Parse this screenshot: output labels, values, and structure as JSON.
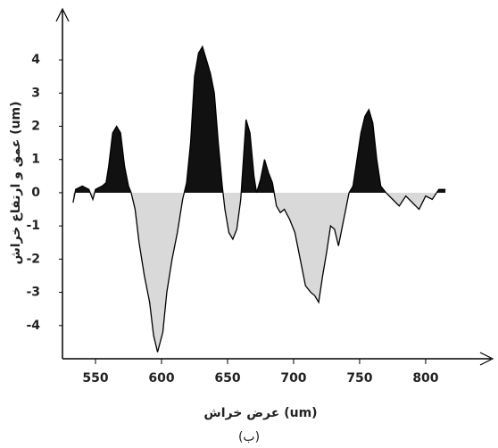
{
  "chart_data": {
    "type": "line",
    "y_label": "عمق و ارتفاع خراش (um)",
    "x_label": "عرض خراش (um)",
    "caption": "(ب)",
    "xlim": [
      525,
      846
    ],
    "ylim": [
      -5,
      5.4
    ],
    "xticks": [
      550,
      600,
      650,
      700,
      750,
      800
    ],
    "yticks": [
      -4,
      -3,
      -2,
      -1,
      0,
      1,
      2,
      3,
      4
    ],
    "above_color": "#111111",
    "below_color": "#d9d9d9",
    "line_color": "#000000",
    "x": [
      533,
      535,
      540,
      545,
      548,
      550,
      555,
      558,
      560,
      563,
      566,
      569,
      572,
      575,
      577,
      580,
      583,
      587,
      591,
      594,
      597,
      599,
      601,
      604,
      608,
      612,
      616,
      619,
      622,
      625,
      628,
      631,
      634,
      637,
      640,
      643,
      646,
      648,
      651,
      654,
      657,
      660,
      662,
      664,
      667,
      670,
      672,
      675,
      678,
      681,
      684,
      687,
      690,
      693,
      697,
      701,
      705,
      709,
      713,
      716,
      719,
      722,
      725,
      728,
      731,
      734,
      737,
      740,
      742,
      745,
      748,
      751,
      754,
      757,
      760,
      763,
      766,
      770,
      775,
      780,
      785,
      790,
      795,
      800,
      805,
      810,
      815
    ],
    "values": [
      -0.3,
      0.1,
      0.2,
      0.1,
      -0.2,
      0.1,
      0.2,
      0.3,
      0.8,
      1.8,
      2.0,
      1.8,
      0.8,
      0.2,
      0,
      -0.5,
      -1.5,
      -2.5,
      -3.3,
      -4.3,
      -4.8,
      -4.5,
      -4.2,
      -3.0,
      -2.0,
      -1.2,
      -0.2,
      0.3,
      1.5,
      3.5,
      4.2,
      4.4,
      4.0,
      3.6,
      3.0,
      1.5,
      0.2,
      -0.5,
      -1.2,
      -1.4,
      -1.1,
      -0.2,
      1.0,
      2.2,
      1.8,
      0.5,
      0,
      0.4,
      1.0,
      0.6,
      0.3,
      -0.4,
      -0.6,
      -0.5,
      -0.8,
      -1.2,
      -2.0,
      -2.8,
      -3.0,
      -3.1,
      -3.3,
      -2.5,
      -1.8,
      -1.0,
      -1.1,
      -1.6,
      -1.0,
      -0.4,
      0,
      0.2,
      1.0,
      1.8,
      2.3,
      2.5,
      2.1,
      1.0,
      0.2,
      0,
      -0.2,
      -0.4,
      -0.1,
      -0.3,
      -0.5,
      -0.1,
      -0.2,
      0.1,
      0.1
    ]
  }
}
